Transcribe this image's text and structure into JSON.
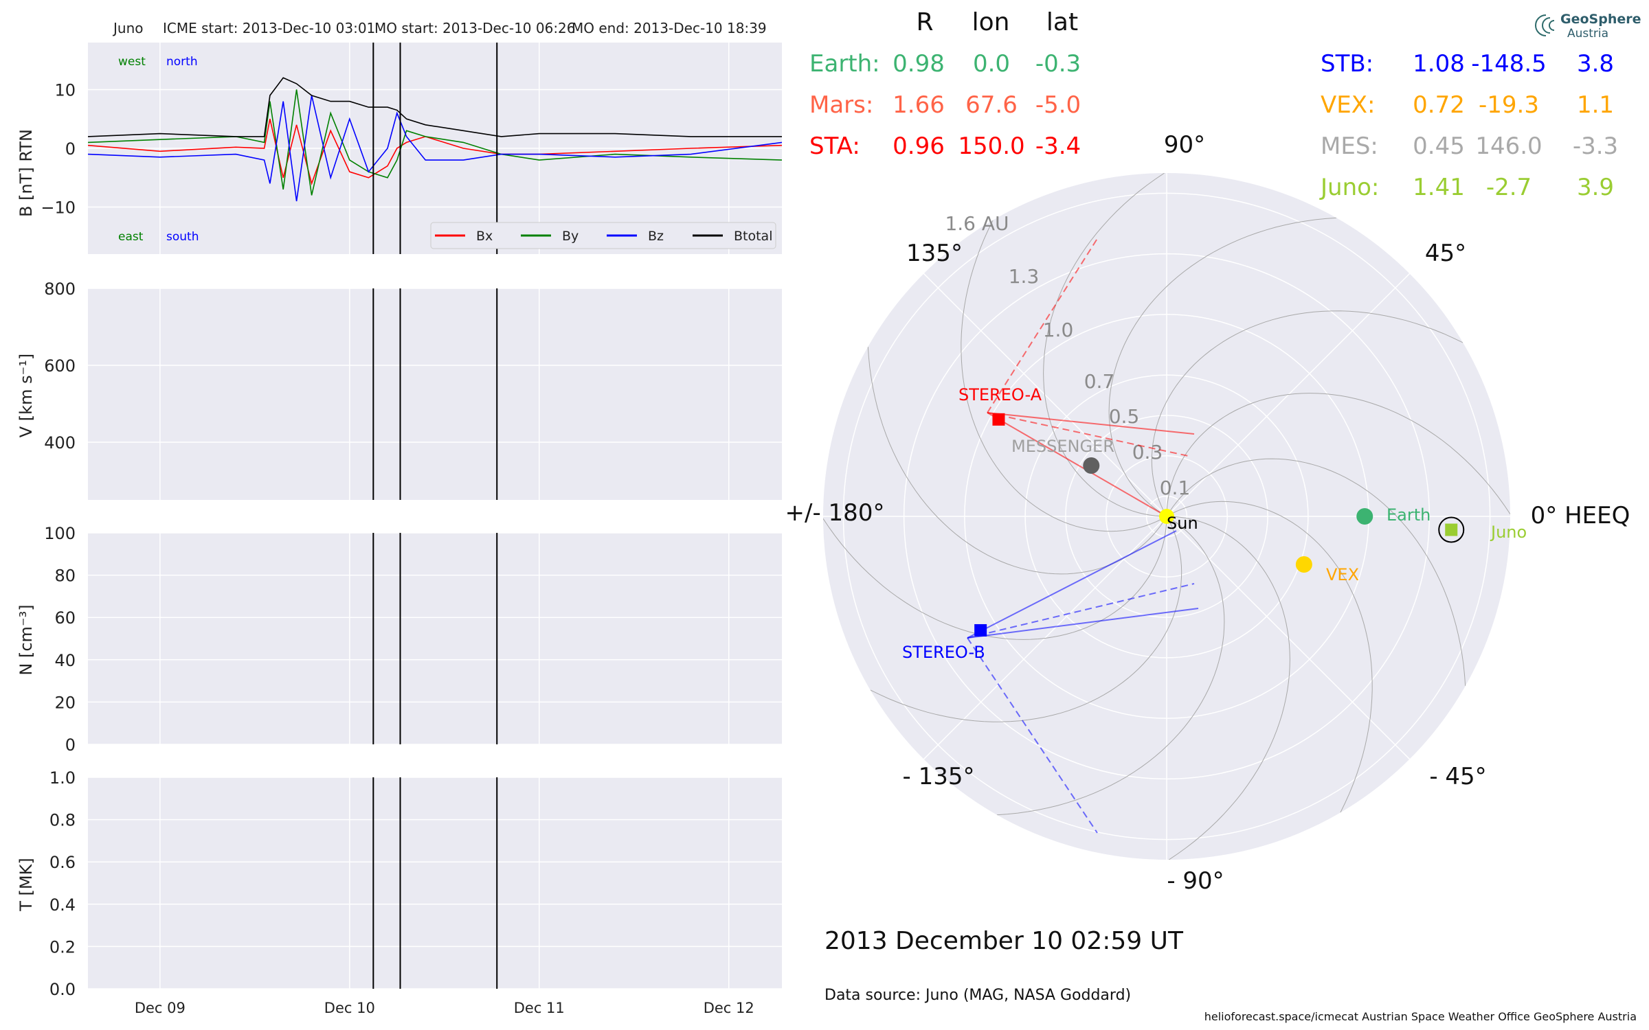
{
  "header": {
    "spacecraft": "Juno",
    "icme": "ICME start: 2013-Dec-10 03:01",
    "mo_start": "MO start: 2013-Dec-10 06:26",
    "mo_end": "MO end: 2013-Dec-10 18:39"
  },
  "colors": {
    "panel_bg": "#eaeaf2",
    "grid": "#ffffff",
    "bx": "#ff0000",
    "by": "#008000",
    "bz": "#0000ff",
    "btotal": "#000000",
    "earth": "#3cb371",
    "mars": "#ff6347",
    "sta": "#ff0000",
    "stb": "#0000ff",
    "vex": "#ffa500",
    "mes": "#a9a9a9",
    "juno": "#9acd32"
  },
  "chart_data": [
    {
      "type": "line",
      "name": "magnetic_field",
      "ylabel": "B [nT] RTN",
      "ylim": [
        -18,
        18
      ],
      "yticks": [
        "10",
        "0",
        "−10"
      ],
      "ytick_values": [
        10,
        0,
        -10
      ],
      "xlim": [
        -1.38,
        2.28
      ],
      "xtick_labels": [
        "Dec 09",
        "Dec 10",
        "Dec 11",
        "Dec 12"
      ],
      "xtick_values": [
        -1,
        0,
        1,
        2
      ],
      "x_unit": "days since 2013-Dec-10 00:00",
      "event_lines": [
        0.125,
        0.267,
        0.777
      ],
      "legend": [
        "Bx",
        "By",
        "Bz",
        "Btotal"
      ],
      "labels_top": [
        "west",
        "north"
      ],
      "labels_bottom": [
        "east",
        "south"
      ],
      "series": [
        {
          "name": "Bx",
          "x": [
            -1.38,
            -1.0,
            -0.6,
            -0.45,
            -0.42,
            -0.35,
            -0.28,
            -0.2,
            -0.1,
            0.0,
            0.1,
            0.2,
            0.25,
            0.3,
            0.4,
            0.6,
            0.8,
            1.0,
            1.4,
            1.8,
            2.28
          ],
          "values": [
            0.5,
            -0.5,
            0.2,
            0,
            5,
            -5,
            4,
            -6,
            3,
            -4,
            -5,
            -3,
            0,
            1,
            2,
            0,
            -1,
            -1,
            -0.5,
            0,
            0.5
          ]
        },
        {
          "name": "By",
          "x": [
            -1.38,
            -1.0,
            -0.6,
            -0.45,
            -0.42,
            -0.35,
            -0.28,
            -0.2,
            -0.1,
            0.0,
            0.1,
            0.2,
            0.25,
            0.3,
            0.4,
            0.6,
            0.8,
            1.0,
            1.4,
            1.8,
            2.28
          ],
          "values": [
            1,
            1.5,
            2,
            1,
            8,
            -7,
            10,
            -8,
            6,
            -2,
            -4,
            -5,
            -2,
            3,
            2,
            1,
            -1,
            -2,
            -1,
            -1.5,
            -2
          ]
        },
        {
          "name": "Bz",
          "x": [
            -1.38,
            -1.0,
            -0.6,
            -0.45,
            -0.42,
            -0.35,
            -0.28,
            -0.2,
            -0.1,
            0.0,
            0.1,
            0.2,
            0.25,
            0.3,
            0.4,
            0.6,
            0.8,
            1.0,
            1.4,
            1.8,
            2.28
          ],
          "values": [
            -1,
            -1.5,
            -1,
            -2,
            -6,
            8,
            -9,
            9,
            -5,
            5,
            -4,
            0,
            6,
            2,
            -2,
            -2,
            -1,
            -1,
            -1.5,
            -1,
            1
          ]
        },
        {
          "name": "Btotal",
          "x": [
            -1.38,
            -1.0,
            -0.6,
            -0.45,
            -0.42,
            -0.35,
            -0.28,
            -0.2,
            -0.1,
            0.0,
            0.1,
            0.2,
            0.25,
            0.3,
            0.4,
            0.6,
            0.8,
            1.0,
            1.4,
            1.8,
            2.28
          ],
          "values": [
            2,
            2.5,
            2,
            2,
            9,
            12,
            11,
            9,
            8,
            8,
            7,
            7,
            6.5,
            5,
            4,
            3,
            2,
            2.5,
            2.5,
            2,
            2
          ]
        }
      ]
    },
    {
      "type": "line",
      "name": "speed",
      "ylabel": "V [km s⁻¹]",
      "ylim": [
        250,
        800
      ],
      "yticks": [
        "800",
        "600",
        "400"
      ],
      "ytick_values": [
        800,
        600,
        400
      ],
      "series": []
    },
    {
      "type": "line",
      "name": "density",
      "ylabel": "N [cm⁻³]",
      "ylim": [
        0,
        100
      ],
      "yticks": [
        "100",
        "80",
        "60",
        "40",
        "20",
        "0"
      ],
      "ytick_values": [
        100,
        80,
        60,
        40,
        20,
        0
      ],
      "series": []
    },
    {
      "type": "line",
      "name": "temperature",
      "ylabel": "T [MK]",
      "ylim": [
        0,
        1
      ],
      "yticks": [
        "1.0",
        "0.8",
        "0.6",
        "0.4",
        "0.2",
        "0.0"
      ],
      "ytick_values": [
        1.0,
        0.8,
        0.6,
        0.4,
        0.2,
        0.0
      ],
      "series": []
    },
    {
      "type": "scatter",
      "name": "polar_positions",
      "rmax": 1.7,
      "radial_ticks": [
        "0.1",
        "0.3",
        "0.5",
        "0.7",
        "1.0",
        "1.3",
        "1.6 AU"
      ],
      "radial_values": [
        0.1,
        0.3,
        0.5,
        0.7,
        1.0,
        1.3,
        1.6
      ],
      "angle_labels": [
        "0° HEEQ",
        "45°",
        "90°",
        "135°",
        "+/- 180°",
        "- 135°",
        "- 90°",
        "- 45°"
      ],
      "angle_values": [
        0,
        45,
        90,
        135,
        180,
        -135,
        -90,
        -45
      ],
      "bodies": [
        {
          "name": "Sun",
          "r": 0.0,
          "lon": 0.0,
          "color": "#ffff00",
          "marker": "circle"
        },
        {
          "name": "Earth",
          "r": 0.98,
          "lon": 0.0,
          "color": "#3cb371",
          "marker": "circle"
        },
        {
          "name": "VEX",
          "r": 0.72,
          "lon": -19.3,
          "color": "#ffd700",
          "marker": "circle"
        },
        {
          "name": "MESSENGER",
          "r": 0.45,
          "lon": 146.0,
          "color": "#606060",
          "marker": "circle"
        },
        {
          "name": "STEREO-A",
          "r": 0.96,
          "lon": 150.0,
          "color": "#ff0000",
          "marker": "square"
        },
        {
          "name": "STEREO-B",
          "r": 1.08,
          "lon": -148.5,
          "color": "#0000ff",
          "marker": "square"
        },
        {
          "name": "Juno",
          "r": 1.41,
          "lon": -2.7,
          "color": "#9acd32",
          "marker": "square"
        }
      ]
    }
  ],
  "table": {
    "headers": [
      "R",
      "lon",
      "lat"
    ],
    "left": [
      {
        "label": "Earth:",
        "r": "0.98",
        "lon": "0.0",
        "lat": "-0.3"
      },
      {
        "label": "Mars:",
        "r": "1.66",
        "lon": "67.6",
        "lat": "-5.0"
      },
      {
        "label": "STA:",
        "r": "0.96",
        "lon": "150.0",
        "lat": "-3.4"
      }
    ],
    "right": [
      {
        "label": "STB:",
        "r": "1.08",
        "lon": "-148.5",
        "lat": "3.8"
      },
      {
        "label": "VEX:",
        "r": "0.72",
        "lon": "-19.3",
        "lat": "1.1"
      },
      {
        "label": "MES:",
        "r": "0.45",
        "lon": "146.0",
        "lat": "-3.3"
      },
      {
        "label": "Juno:",
        "r": "1.41",
        "lon": "-2.7",
        "lat": "3.9"
      }
    ]
  },
  "logo": {
    "line1": "GeoSphere",
    "line2": "Austria"
  },
  "date_text": "2013 December 10  02:59 UT",
  "data_source": "Data source: Juno (MAG, NASA Goddard)",
  "footer": "helioforecast.space/icmecat   Austrian Space Weather Office   GeoSphere Austria"
}
